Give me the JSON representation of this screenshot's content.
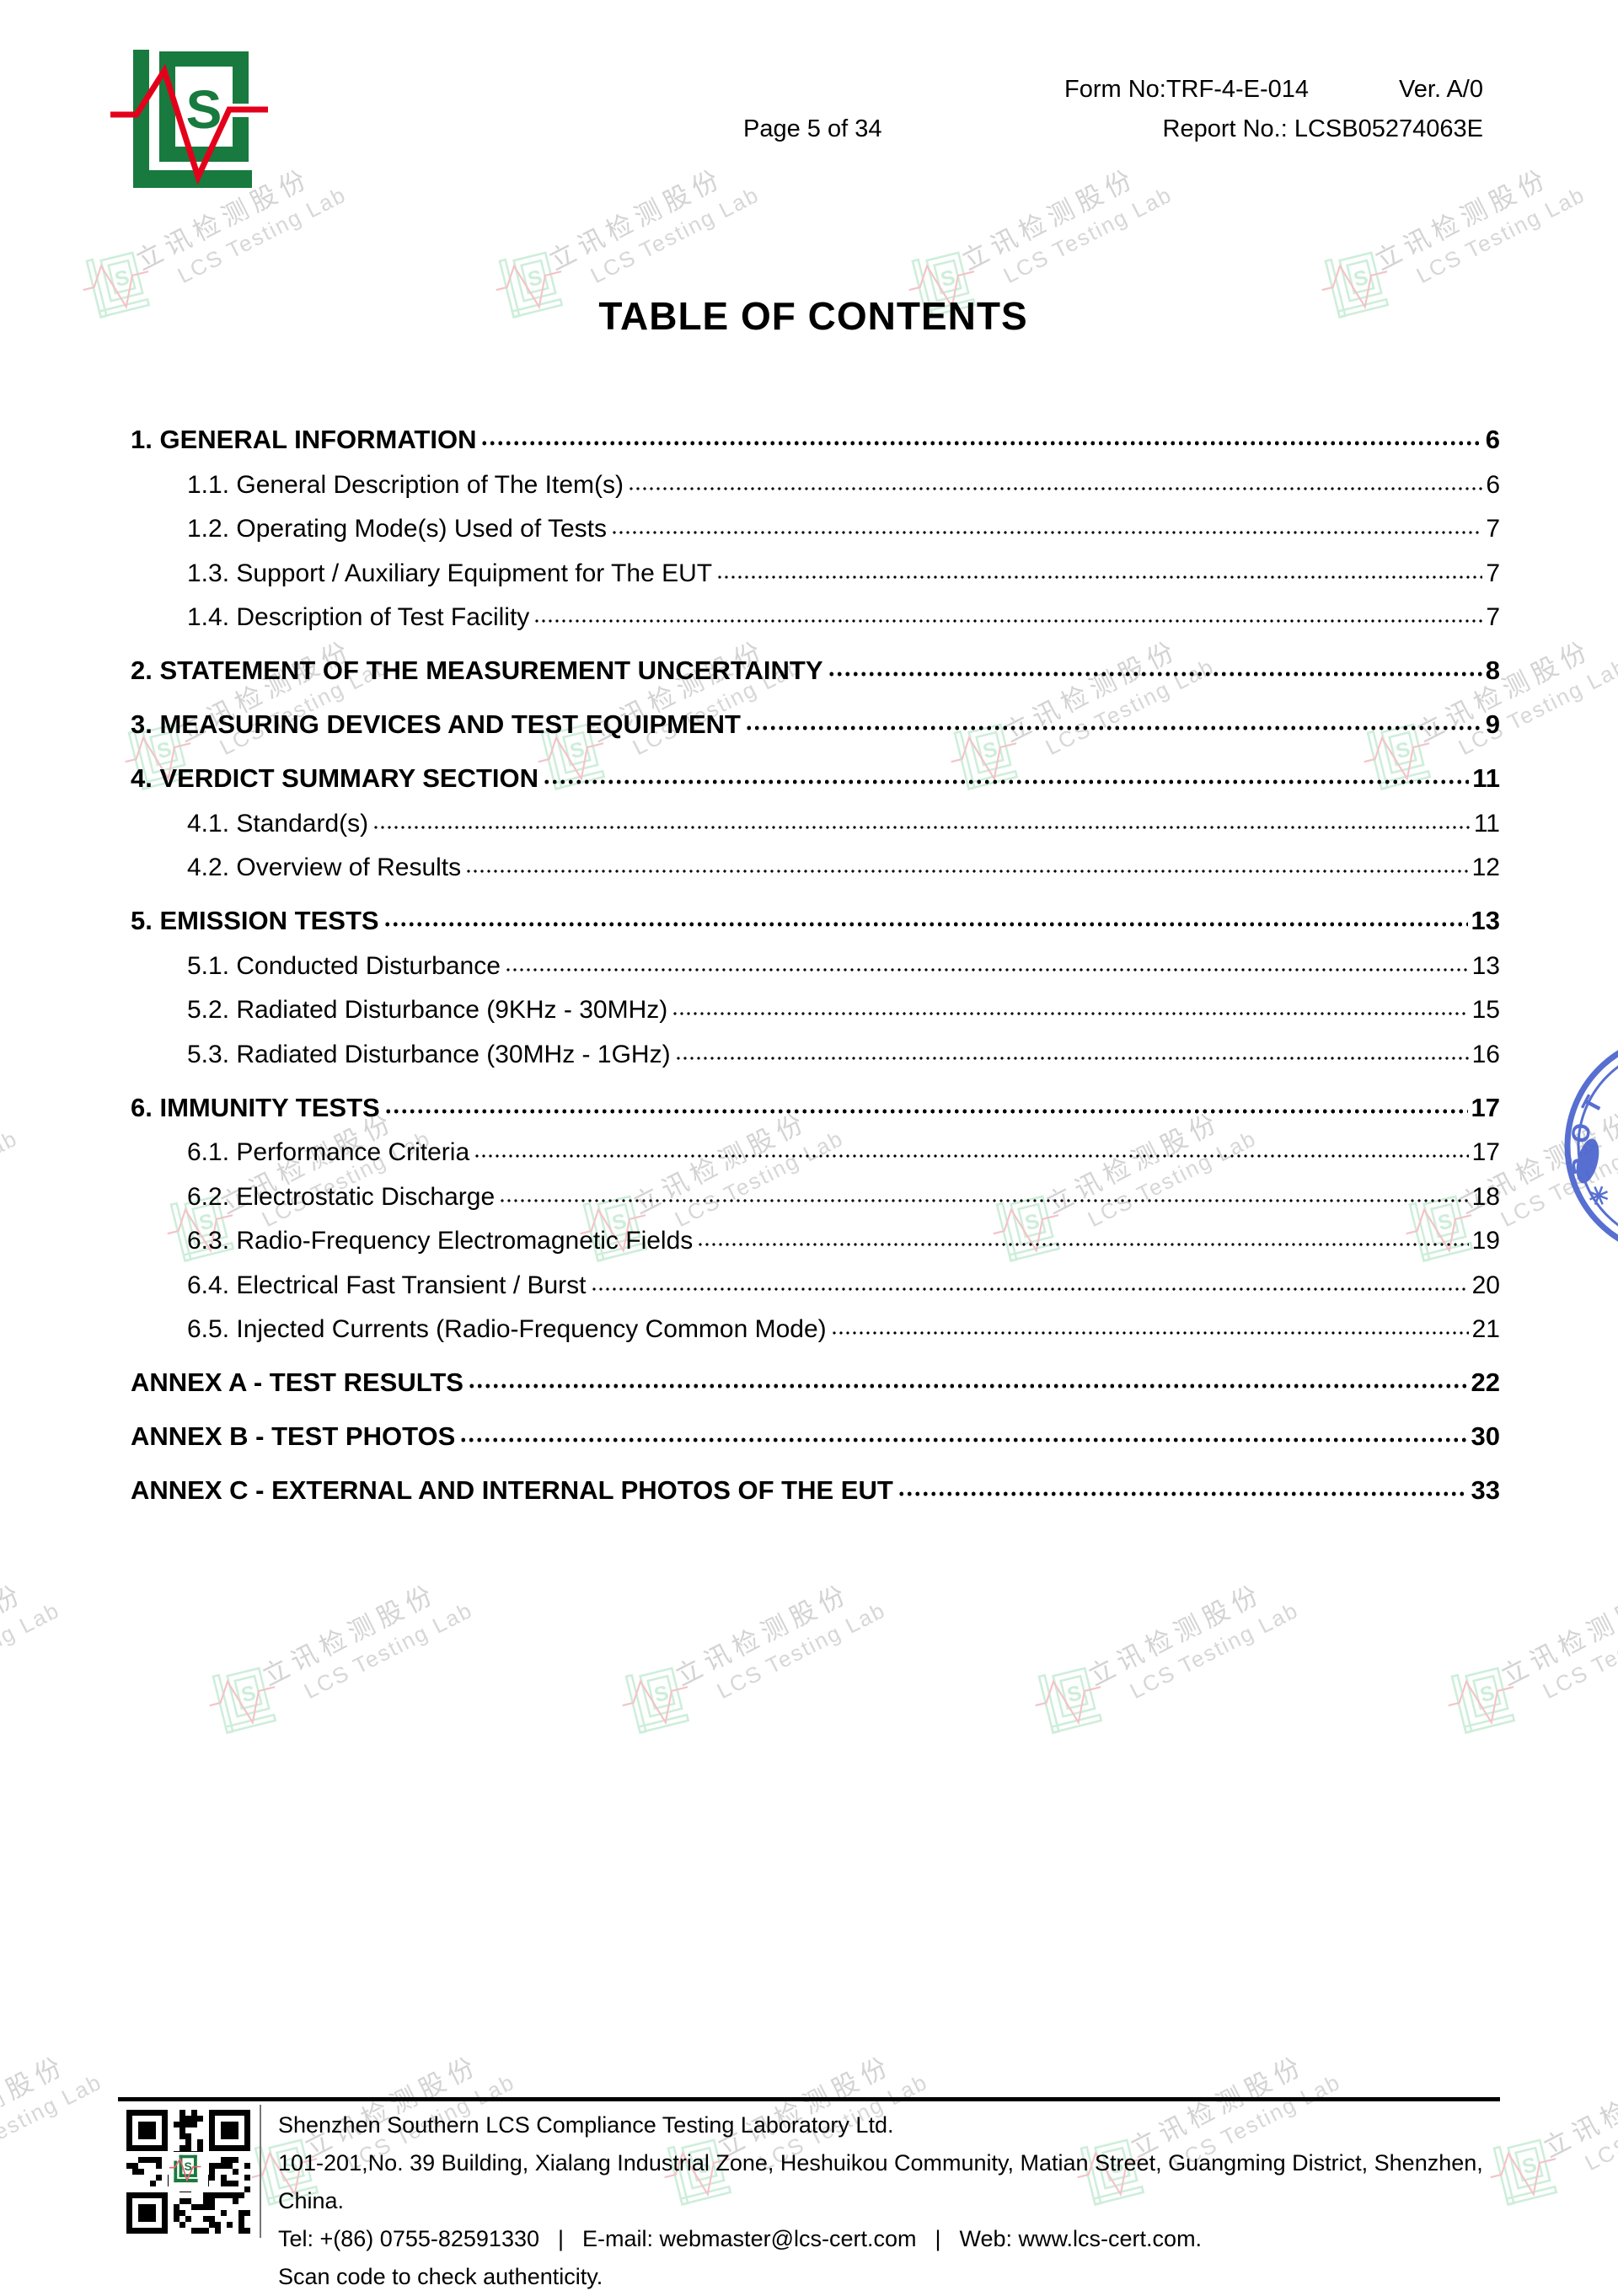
{
  "header": {
    "form_no": "Form No:TRF-4-E-014",
    "version": "Ver. A/0",
    "page_info": "Page 5 of 34",
    "report_no": "Report No.: LCSB05274063E"
  },
  "title": "TABLE OF CONTENTS",
  "logo": {
    "letter": "S"
  },
  "watermark": {
    "text_cn": "立讯检测股份",
    "text_en": "LCS Testing Lab"
  },
  "toc": {
    "entries": [
      {
        "label": "1. GENERAL INFORMATION",
        "page": "6",
        "level": 1
      },
      {
        "label": "1.1. General Description of The Item(s)",
        "page": "6",
        "level": 2
      },
      {
        "label": "1.2. Operating Mode(s) Used of Tests",
        "page": "7",
        "level": 2
      },
      {
        "label": "1.3. Support / Auxiliary Equipment for The EUT",
        "page": "7",
        "level": 2
      },
      {
        "label": "1.4. Description of Test Facility",
        "page": "7",
        "level": 2
      },
      {
        "label": "2. STATEMENT OF THE MEASUREMENT UNCERTAINTY",
        "page": "8",
        "level": 1
      },
      {
        "label": "3. MEASURING DEVICES AND TEST EQUIPMENT",
        "page": "9",
        "level": 1
      },
      {
        "label": "4. VERDICT SUMMARY SECTION",
        "page": "11",
        "level": 1
      },
      {
        "label": "4.1. Standard(s)",
        "page": "11",
        "level": 2
      },
      {
        "label": "4.2. Overview of Results",
        "page": "12",
        "level": 2
      },
      {
        "label": "5. EMISSION TESTS",
        "page": "13",
        "level": 1
      },
      {
        "label": "5.1. Conducted Disturbance",
        "page": "13",
        "level": 2
      },
      {
        "label": "5.2. Radiated Disturbance (9KHz - 30MHz)",
        "page": "15",
        "level": 2
      },
      {
        "label": "5.3. Radiated Disturbance (30MHz - 1GHz)",
        "page": "16",
        "level": 2
      },
      {
        "label": "6. IMMUNITY TESTS",
        "page": "17",
        "level": 1
      },
      {
        "label": "6.1. Performance Criteria",
        "page": "17",
        "level": 2
      },
      {
        "label": "6.2. Electrostatic Discharge",
        "page": "18",
        "level": 2
      },
      {
        "label": "6.3. Radio-Frequency Electromagnetic Fields",
        "page": "19",
        "level": 2
      },
      {
        "label": "6.4. Electrical Fast Transient / Burst",
        "page": "20",
        "level": 2
      },
      {
        "label": "6.5. Injected Currents (Radio-Frequency Common Mode)",
        "page": "21",
        "level": 2
      },
      {
        "label": "ANNEX A - TEST RESULTS",
        "page": "22",
        "level": 1
      },
      {
        "label": "ANNEX B - TEST PHOTOS",
        "page": "30",
        "level": 1
      },
      {
        "label": "ANNEX C - EXTERNAL AND INTERNAL PHOTOS OF THE EUT",
        "page": "33",
        "level": 1
      }
    ]
  },
  "footer": {
    "company": "Shenzhen Southern LCS Compliance Testing Laboratory Ltd.",
    "address": "101-201,No. 39 Building, Xialang Industrial Zone, Heshuikou Community, Matian Street, Guangming District, Shenzhen, China.",
    "tel": "Tel: +(86) 0755-82591330",
    "email": "E-mail: webmaster@lcs-cert.com",
    "web": "Web: www.lcs-cert.com.",
    "pipe": "|",
    "scan_note": "Scan code to check authenticity."
  },
  "colors": {
    "brand_green": "#187a3e",
    "brand_red": "#e3001b",
    "stamp_blue": "#4560cd",
    "watermark_green": "#cdeeda",
    "watermark_gray": "#d3d3d3"
  }
}
